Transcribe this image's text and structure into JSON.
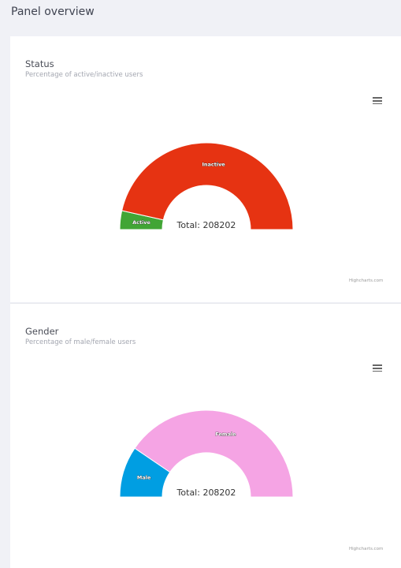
{
  "page": {
    "title": "Panel overview"
  },
  "colors": {
    "page_bg": "#f0f1f6",
    "inactive": "#e63312",
    "active": "#41a535",
    "female": "#f5a4e4",
    "male": "#009ee2"
  },
  "status_card": {
    "title": "Status",
    "subtitle": "Percentage of active/inactive users",
    "menu_icon": "hamburger-menu-icon",
    "credits": "Highcharts.com",
    "total_text": "Total: 208202"
  },
  "gender_card": {
    "title": "Gender",
    "subtitle": "Percentage of male/female users",
    "menu_icon": "hamburger-menu-icon",
    "credits": "Highcharts.com",
    "total_text": "Total: 208202"
  },
  "chart_data": [
    {
      "type": "pie",
      "variant": "semi-circle donut",
      "title": "Status",
      "subtitle": "Percentage of active/inactive users",
      "center_label": "Total: 208202",
      "total": 208202,
      "slices": [
        {
          "name": "Active",
          "percent": 7,
          "color": "#41a535"
        },
        {
          "name": "Inactive",
          "percent": 93,
          "color": "#e63312"
        }
      ]
    },
    {
      "type": "pie",
      "variant": "semi-circle donut",
      "title": "Gender",
      "subtitle": "Percentage of male/female users",
      "center_label": "Total: 208202",
      "total": 208202,
      "slices": [
        {
          "name": "Male",
          "percent": 19,
          "color": "#009ee2"
        },
        {
          "name": "Female",
          "percent": 81,
          "color": "#f5a4e4"
        }
      ]
    }
  ]
}
